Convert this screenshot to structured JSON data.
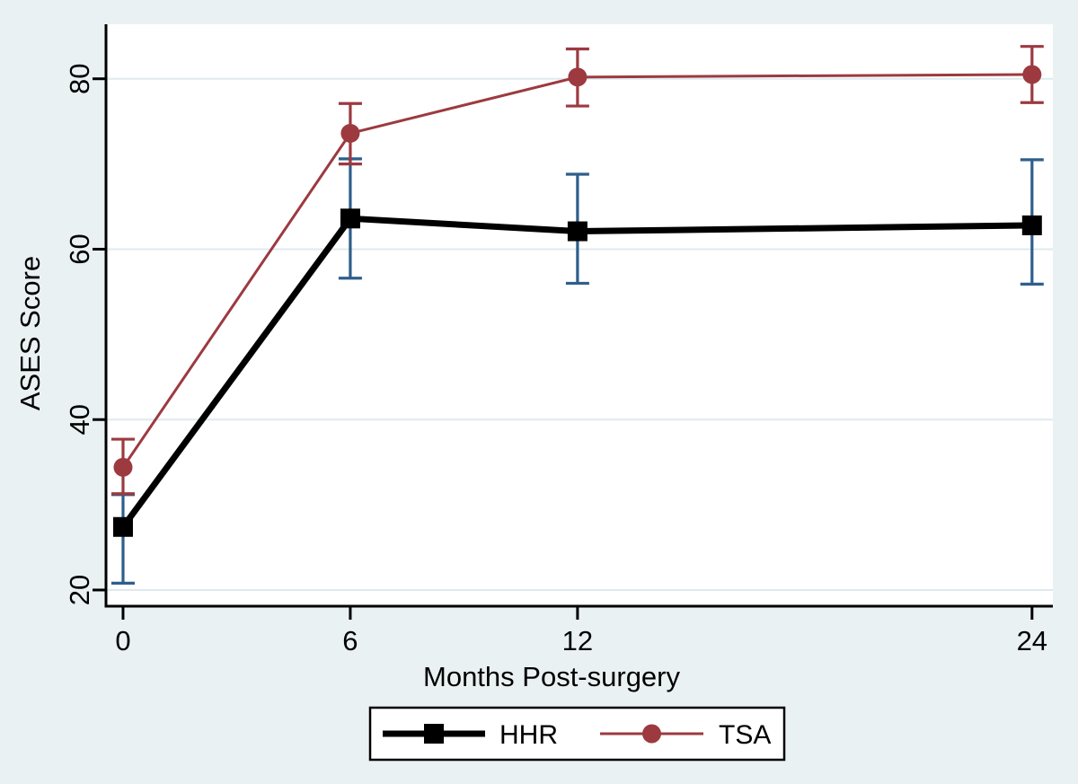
{
  "figure": {
    "background_color": "#eaf1f3",
    "plot_background_color": "#ffffff",
    "gridline_color": "#dfeaee",
    "axis_color": "#000000"
  },
  "chart_data": {
    "type": "line",
    "title": "",
    "xlabel": "Months Post-surgery",
    "ylabel": "ASES Score",
    "x": [
      0,
      6,
      12,
      24
    ],
    "x_ticks": [
      0,
      6,
      12,
      24
    ],
    "y_ticks": [
      20,
      40,
      60,
      80
    ],
    "xlim": [
      -0.45,
      24.55
    ],
    "ylim": [
      18.1,
      86.4
    ],
    "grid": "horizontal-only",
    "error_bars": true,
    "legend_position": "bottom-center",
    "series": [
      {
        "name": "HHR",
        "marker": "square",
        "color": "#000000",
        "error_color": "#2e5e8c",
        "line_width": 7,
        "values": [
          27.4,
          63.6,
          62.1,
          62.8
        ],
        "ci_low": [
          20.8,
          56.6,
          56.0,
          55.9
        ],
        "ci_high": [
          31.2,
          70.6,
          68.8,
          70.5
        ]
      },
      {
        "name": "TSA",
        "marker": "circle",
        "color": "#9c3a40",
        "error_color": "#9c3a40",
        "line_width": 3,
        "values": [
          34.4,
          73.6,
          80.2,
          80.5
        ],
        "ci_low": [
          31.3,
          70.0,
          76.8,
          77.2
        ],
        "ci_high": [
          37.7,
          77.1,
          83.5,
          83.8
        ]
      }
    ]
  }
}
